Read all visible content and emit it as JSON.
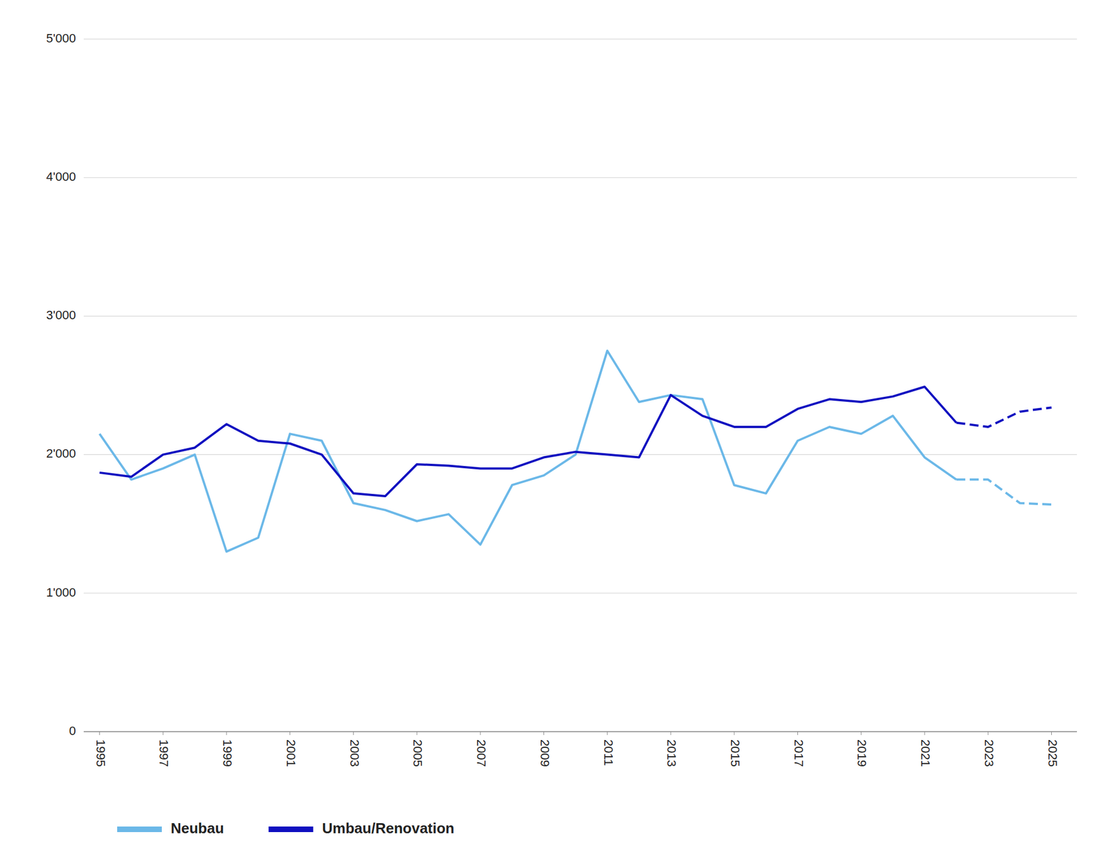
{
  "chart_data": {
    "type": "line",
    "series": [
      {
        "name": "Neubau",
        "color": "#6BB8E8",
        "line_style": "solid",
        "x": [
          1995,
          1996,
          1997,
          1998,
          1999,
          2000,
          2001,
          2002,
          2003,
          2004,
          2005,
          2006,
          2007,
          2008,
          2009,
          2010,
          2011,
          2012,
          2013,
          2014,
          2015,
          2016,
          2017,
          2018,
          2019,
          2020,
          2021,
          2022
        ],
        "values": [
          2150,
          1820,
          1900,
          2000,
          1300,
          1400,
          2150,
          2100,
          1650,
          1600,
          1520,
          1570,
          1350,
          1780,
          1850,
          2000,
          2750,
          2380,
          2430,
          2400,
          1780,
          1720,
          2100,
          2200,
          2150,
          2280,
          1980,
          1820
        ]
      },
      {
        "name": "Umbau/Renovation",
        "color": "#1010C0",
        "line_style": "solid",
        "x": [
          1995,
          1996,
          1997,
          1998,
          1999,
          2000,
          2001,
          2002,
          2003,
          2004,
          2005,
          2006,
          2007,
          2008,
          2009,
          2010,
          2011,
          2012,
          2013,
          2014,
          2015,
          2016,
          2017,
          2018,
          2019,
          2020,
          2021,
          2022
        ],
        "values": [
          1870,
          1840,
          2000,
          2050,
          2220,
          2100,
          2080,
          2000,
          1720,
          1700,
          1930,
          1920,
          1900,
          1900,
          1980,
          2020,
          2000,
          1980,
          2430,
          2280,
          2200,
          2200,
          2330,
          2400,
          2380,
          2420,
          2490,
          2230
        ]
      },
      {
        "color": "#6BB8E8",
        "line_style": "dashed",
        "x": [
          2022,
          2023,
          2024,
          2025
        ],
        "values": [
          1820,
          1820,
          1650,
          1640
        ]
      },
      {
        "color": "#1010C0",
        "line_style": "dashed",
        "x": [
          2022,
          2023,
          2024,
          2025
        ],
        "values": [
          2230,
          2200,
          2310,
          2340
        ]
      }
    ],
    "xlim": [
      1994.5,
      2025.8
    ],
    "xticks": [
      1995,
      1997,
      1999,
      2001,
      2003,
      2005,
      2007,
      2009,
      2011,
      2013,
      2015,
      2017,
      2019,
      2021,
      2023,
      2025
    ],
    "ylim": [
      0,
      5000
    ],
    "yticks": [
      0,
      {
        "value": 1000,
        "label": "1'000"
      },
      {
        "value": 2000,
        "label": "2'000"
      },
      {
        "value": 3000,
        "label": "3'000"
      },
      {
        "value": 4000,
        "label": "4'000"
      },
      {
        "value": 5000,
        "label": "5'000"
      }
    ],
    "grid": "y",
    "legend": "bottom"
  }
}
